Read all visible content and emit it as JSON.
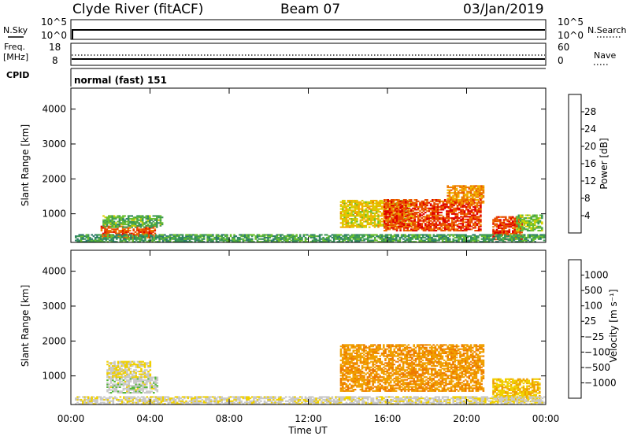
{
  "header": {
    "station": "Clyde River (fitACF)",
    "beam": "Beam 07",
    "date": "03/Jan/2019"
  },
  "top_panels": {
    "nsky_label": "N.Sky",
    "nsky_ticks": [
      "10^5",
      "10^0"
    ],
    "nsearch_label": "N.Search",
    "nsearch_ticks": [
      "10^5",
      "10^0"
    ],
    "freq_label_1": "Freq.",
    "freq_label_2": "[MHz]",
    "freq_ticks": [
      "18",
      "8"
    ],
    "nave_label": "Nave",
    "nave_ticks": [
      "60",
      "0"
    ],
    "cpid_label": "CPID",
    "cpid_value": "normal (fast) 151"
  },
  "chart_data": [
    {
      "type": "heatmap",
      "name": "power",
      "xlabel": "Time UT",
      "ylabel": "Slant Range [km]",
      "xlim": [
        0,
        24
      ],
      "ylim": [
        180,
        4600
      ],
      "x_ticks": [
        "00:00",
        "04:00",
        "08:00",
        "12:00",
        "16:00",
        "20:00",
        "00:00"
      ],
      "y_ticks": [
        1000,
        2000,
        3000,
        4000
      ],
      "colorbar": {
        "label": "Power [dB]",
        "ticks": [
          "28",
          "24",
          "20",
          "16",
          "12",
          "8",
          "4"
        ],
        "colors": [
          "#0000ff",
          "#1f4fa0",
          "#2e7d6b",
          "#3e9a55",
          "#6abf2f",
          "#d8d000",
          "#f0b000",
          "#ee7a00",
          "#e84a00",
          "#e00000"
        ]
      },
      "regions": [
        {
          "t0": 1.5,
          "t1": 4.2,
          "r0": 300,
          "r1": 650,
          "value": 26
        },
        {
          "t0": 1.6,
          "t1": 4.6,
          "r0": 600,
          "r1": 950,
          "value": 12
        },
        {
          "t0": 13.6,
          "t1": 17.2,
          "r0": 600,
          "r1": 1400,
          "value": 18
        },
        {
          "t0": 15.8,
          "t1": 20.7,
          "r0": 500,
          "r1": 1400,
          "value": 27
        },
        {
          "t0": 19.0,
          "t1": 20.8,
          "r0": 1300,
          "r1": 1800,
          "value": 22
        },
        {
          "t0": 21.3,
          "t1": 22.8,
          "r0": 250,
          "r1": 900,
          "value": 27
        },
        {
          "t0": 22.5,
          "t1": 23.8,
          "r0": 500,
          "r1": 950,
          "value": 14
        },
        {
          "t0": 0.2,
          "t1": 23.9,
          "r0": 180,
          "r1": 420,
          "value": 10
        }
      ]
    },
    {
      "type": "heatmap",
      "name": "velocity",
      "xlabel": "Time UT",
      "ylabel": "Slant Range [km]",
      "xlim": [
        0,
        24
      ],
      "ylim": [
        180,
        4600
      ],
      "x_ticks": [
        "00:00",
        "04:00",
        "08:00",
        "12:00",
        "16:00",
        "20:00",
        "00:00"
      ],
      "y_ticks": [
        1000,
        2000,
        3000,
        4000
      ],
      "colorbar": {
        "label": "Velocity [m s⁻¹]",
        "ticks": [
          "1000",
          "500",
          "100",
          "25",
          "−25",
          "−100",
          "−500",
          "−1000"
        ],
        "colors": [
          "#1f3fbf",
          "#2f6aa8",
          "#2e7d4f",
          "#56b83a",
          "#c8c8c8",
          "#f0d000",
          "#f0a000",
          "#ee7a00",
          "#e84a00",
          "#e00000"
        ]
      },
      "regions": [
        {
          "t0": 1.8,
          "t1": 4.4,
          "r0": 500,
          "r1": 950,
          "value": 120
        },
        {
          "t0": 1.8,
          "t1": 4.0,
          "r0": 950,
          "r1": 1400,
          "value": 0
        },
        {
          "t0": 13.6,
          "t1": 20.8,
          "r0": 550,
          "r1": 1900,
          "value": -400
        },
        {
          "t0": 21.3,
          "t1": 23.7,
          "r0": 250,
          "r1": 900,
          "value": -200
        },
        {
          "t0": 0.2,
          "t1": 23.9,
          "r0": 180,
          "r1": 420,
          "value": 60
        }
      ]
    }
  ]
}
